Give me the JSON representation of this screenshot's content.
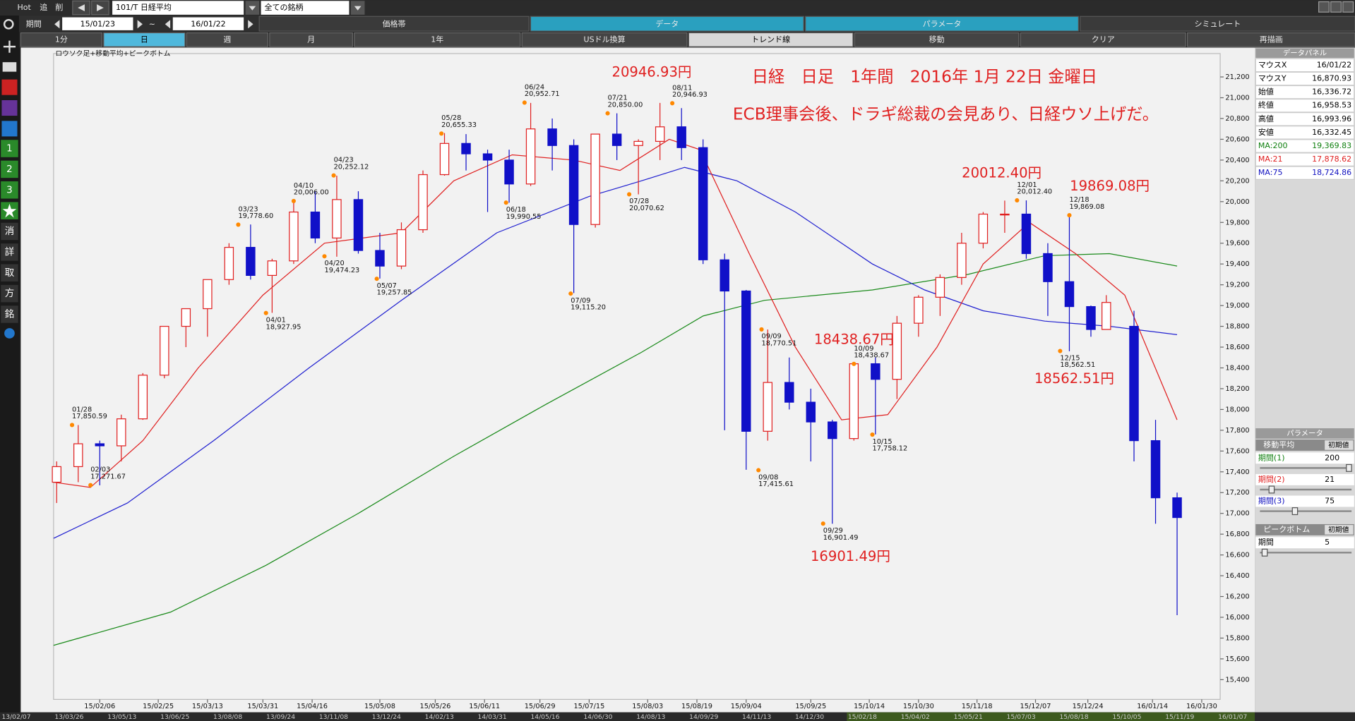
{
  "toolbar": {
    "hot": "Hot",
    "add": "追",
    "del": "削",
    "period_label": "期間",
    "from": "15/01/23",
    "tilde": "~",
    "to": "16/01/22",
    "symbol": "101/T 日経平均",
    "universe": "全ての銘柄"
  },
  "tabs": [
    "価格帯",
    "データ",
    "パラメータ",
    "シミュレート"
  ],
  "buttons": [
    "1分",
    "日",
    "週",
    "月",
    "1年",
    "USドル換算",
    "トレンド線",
    "移動",
    "クリア",
    "再描画"
  ],
  "side_tools": [
    "1",
    "2",
    "3",
    "消",
    "詳",
    "取",
    "方",
    "銘"
  ],
  "data_panel": {
    "title": "データパネル",
    "rows": [
      {
        "label": "マウスX",
        "value": "16/01/22",
        "color": "#000000"
      },
      {
        "label": "マウスY",
        "value": "16,870.93",
        "color": "#000000"
      },
      {
        "label": "始値",
        "value": "16,336.72",
        "color": "#000000"
      },
      {
        "label": "終値",
        "value": "16,958.53",
        "color": "#000000"
      },
      {
        "label": "高値",
        "value": "16,993.96",
        "color": "#000000"
      },
      {
        "label": "安値",
        "value": "16,332.45",
        "color": "#000000"
      },
      {
        "label": "MA:200",
        "value": "19,369.83",
        "color": "#108010"
      },
      {
        "label": "MA:21",
        "value": "17,878.62",
        "color": "#e02020"
      },
      {
        "label": "MA:75",
        "value": "18,724.86",
        "color": "#1010c0"
      }
    ]
  },
  "parameters": {
    "title": "パラメータ",
    "ma_header": "移動平均",
    "ma_default": "初期値",
    "ma": [
      {
        "label": "期間(1)",
        "value": 200,
        "color": "#108010"
      },
      {
        "label": "期間(2)",
        "value": 21,
        "color": "#e02020"
      },
      {
        "label": "期間(3)",
        "value": 75,
        "color": "#1010c0"
      }
    ],
    "pb_header": "ピークボトム",
    "pb_default": "初期値",
    "pb": [
      {
        "label": "期間",
        "value": 5,
        "color": "#000000"
      }
    ]
  },
  "overview_dates": [
    "13/02/07",
    "13/03/26",
    "13/05/13",
    "13/06/25",
    "13/08/08",
    "13/09/24",
    "13/11/08",
    "13/12/24",
    "14/02/13",
    "14/03/31",
    "14/05/16",
    "14/06/30",
    "14/08/13",
    "14/09/29",
    "14/11/13",
    "14/12/30",
    "15/02/18",
    "15/04/02",
    "15/05/21",
    "15/07/03",
    "15/08/18",
    "15/10/05",
    "15/11/19",
    "16/01/07"
  ],
  "chart_data": {
    "type": "candlestick",
    "title": "ロウソク足+移動平均+ピークボトム",
    "annotations": [
      "20946.93円",
      "日経　日足　1年間　2016年 1月 22日 金曜日",
      "ECB理事会後、ドラギ総裁の会見あり、日経ウソ上げだ。",
      "18438.67円",
      "16901.49円",
      "20012.40円",
      "19869.08円",
      "18562.51円"
    ],
    "up_color": "#e02020",
    "down_color": "#1010c8",
    "xlim": [
      "15/01/22",
      "16/02/05"
    ],
    "xticks": [
      "15/02/06",
      "15/02/25",
      "15/03/13",
      "15/03/31",
      "15/04/16",
      "15/05/08",
      "15/05/26",
      "15/06/11",
      "15/06/29",
      "15/07/15",
      "15/08/03",
      "15/08/19",
      "15/09/04",
      "15/09/25",
      "15/10/14",
      "15/10/30",
      "15/11/18",
      "15/12/07",
      "15/12/24",
      "16/01/14",
      "16/01/30"
    ],
    "ylim": [
      15210,
      21425
    ],
    "yticks": [
      {
        "value": 15400,
        "label": "15,400"
      },
      {
        "value": 15600,
        "label": "15,600"
      },
      {
        "value": 15800,
        "label": "15,800"
      },
      {
        "value": 16000,
        "label": "16,000"
      },
      {
        "value": 16200,
        "label": "16,200"
      },
      {
        "value": 16400,
        "label": "16,400"
      },
      {
        "value": 16600,
        "label": "16,600"
      },
      {
        "value": 16800,
        "label": "16,800"
      },
      {
        "value": 17000,
        "label": "17,000"
      },
      {
        "value": 17200,
        "label": "17,200"
      },
      {
        "value": 17400,
        "label": "17,400"
      },
      {
        "value": 17600,
        "label": "17,600"
      },
      {
        "value": 17800,
        "label": "17,800"
      },
      {
        "value": 18000,
        "label": "18,000"
      },
      {
        "value": 18200,
        "label": "18,200"
      },
      {
        "value": 18400,
        "label": "18,400"
      },
      {
        "value": 18600,
        "label": "18,600"
      },
      {
        "value": 18800,
        "label": "18,800"
      },
      {
        "value": 19000,
        "label": "19,000"
      },
      {
        "value": 19200,
        "label": "19,200"
      },
      {
        "value": 19400,
        "label": "19,400"
      },
      {
        "value": 19600,
        "label": "19,600"
      },
      {
        "value": 19800,
        "label": "19,800"
      },
      {
        "value": 20000,
        "label": "20,000"
      },
      {
        "value": 20200,
        "label": "20,200"
      },
      {
        "value": 20400,
        "label": "20,400"
      },
      {
        "value": 20600,
        "label": "20,600"
      },
      {
        "value": 20800,
        "label": "20,800"
      },
      {
        "value": 21000,
        "label": "21,000"
      },
      {
        "value": 21200,
        "label": "21,200"
      }
    ],
    "candles": {
      "dates": [
        "15/01/23",
        "15/01/30",
        "15/02/06",
        "15/02/13",
        "15/02/20",
        "15/02/27",
        "15/03/06",
        "15/03/13",
        "15/03/20",
        "15/03/27",
        "15/04/03",
        "15/04/10",
        "15/04/17",
        "15/04/24",
        "15/05/01",
        "15/05/08",
        "15/05/15",
        "15/05/22",
        "15/05/29",
        "15/06/05",
        "15/06/12",
        "15/06/19",
        "15/06/26",
        "15/07/03",
        "15/07/10",
        "15/07/17",
        "15/07/24",
        "15/07/31",
        "15/08/07",
        "15/08/14",
        "15/08/21",
        "15/08/28",
        "15/09/04",
        "15/09/11",
        "15/09/18",
        "15/09/25",
        "15/10/02",
        "15/10/09",
        "15/10/16",
        "15/10/23",
        "15/10/30",
        "15/11/06",
        "15/11/13",
        "15/11/20",
        "15/11/27",
        "15/12/04",
        "15/12/11",
        "15/12/18",
        "15/12/25",
        "15/12/30",
        "16/01/08",
        "16/01/15",
        "16/01/22"
      ],
      "open": [
        17300,
        17450,
        17670,
        17650,
        17910,
        18330,
        18800,
        18970,
        19250,
        19560,
        19290,
        19430,
        19900,
        19650,
        20020,
        19530,
        19380,
        19730,
        20260,
        20560,
        20460,
        20400,
        20170,
        20700,
        20540,
        19780,
        20650,
        20540,
        20580,
        20720,
        20520,
        19440,
        19140,
        17790,
        18260,
        18070,
        17880,
        17720,
        18440,
        18290,
        18830,
        19080,
        19270,
        19600,
        19880,
        19880,
        19500,
        19230,
        18990,
        18770,
        18800,
        17700,
        17150
      ],
      "high": [
        17500,
        17850,
        17700,
        17950,
        18350,
        18800,
        18970,
        19250,
        19600,
        19780,
        19450,
        20010,
        20100,
        20250,
        20100,
        19700,
        19800,
        20300,
        20660,
        20650,
        20500,
        20500,
        20950,
        20800,
        20600,
        20650,
        20850,
        20600,
        20950,
        20900,
        20600,
        19500,
        19150,
        18770,
        18500,
        18200,
        17900,
        18440,
        18500,
        18900,
        19100,
        19300,
        19700,
        19900,
        20010,
        20012,
        19600,
        19870,
        19000,
        19100,
        18950,
        17900,
        17200
      ],
      "low": [
        17100,
        17300,
        17270,
        17500,
        17900,
        18300,
        18600,
        18700,
        19200,
        19250,
        18930,
        19400,
        19600,
        19470,
        19500,
        19260,
        19350,
        19700,
        20250,
        20300,
        19900,
        19990,
        20150,
        20300,
        19120,
        19750,
        20400,
        20070,
        20400,
        20400,
        19400,
        17800,
        17420,
        17700,
        18000,
        17500,
        16900,
        17700,
        17760,
        18100,
        18700,
        18900,
        19200,
        19550,
        19700,
        19450,
        18900,
        18560,
        18700,
        18800,
        17500,
        16900,
        16020
      ],
      "close": [
        17450,
        17670,
        17650,
        17910,
        18330,
        18800,
        18970,
        19250,
        19560,
        19290,
        19430,
        19900,
        19650,
        20020,
        19530,
        19380,
        19730,
        20260,
        20560,
        20460,
        20400,
        20170,
        20700,
        20540,
        19780,
        20650,
        20540,
        20580,
        20720,
        20520,
        19440,
        19140,
        17790,
        18260,
        18070,
        17880,
        17720,
        18440,
        18290,
        18830,
        19080,
        19270,
        19600,
        19880,
        19880,
        19500,
        19230,
        18990,
        18770,
        19030,
        17700,
        17150,
        16960
      ]
    },
    "series": [
      {
        "color": "#1a8a1a",
        "dates": [
          "15/01/22",
          "15/03/01",
          "15/04/01",
          "15/05/01",
          "15/06/01",
          "15/07/01",
          "15/08/01",
          "15/08/21",
          "15/09/10",
          "15/10/15",
          "15/11/15",
          "15/12/10",
          "15/12/31",
          "16/01/22"
        ],
        "values": [
          15730,
          16050,
          16500,
          17000,
          17550,
          18050,
          18550,
          18900,
          19050,
          19150,
          19300,
          19480,
          19500,
          19380
        ]
      },
      {
        "color": "#2020d0",
        "dates": [
          "15/01/22",
          "15/02/15",
          "15/03/15",
          "15/04/15",
          "15/05/15",
          "15/06/15",
          "15/07/15",
          "15/08/01",
          "15/08/15",
          "15/09/01",
          "15/09/20",
          "15/10/15",
          "15/11/01",
          "15/11/20",
          "15/12/10",
          "15/12/31",
          "16/01/22"
        ],
        "values": [
          16760,
          17100,
          17700,
          18400,
          19050,
          19700,
          20050,
          20200,
          20330,
          20200,
          19900,
          19400,
          19150,
          18950,
          18850,
          18800,
          18720
        ]
      },
      {
        "color": "#e02020",
        "dates": [
          "15/01/22",
          "15/02/03",
          "15/02/20",
          "15/03/10",
          "15/03/31",
          "15/04/20",
          "15/05/15",
          "15/06/01",
          "15/06/20",
          "15/07/10",
          "15/07/25",
          "15/08/10",
          "15/08/20",
          "15/09/05",
          "15/09/20",
          "15/10/05",
          "15/10/20",
          "15/11/05",
          "15/11/20",
          "15/12/05",
          "15/12/20",
          "16/01/05",
          "16/01/22"
        ],
        "values": [
          17300,
          17250,
          17700,
          18400,
          19100,
          19600,
          19700,
          20200,
          20450,
          20400,
          20300,
          20600,
          20500,
          19500,
          18600,
          17900,
          17950,
          18600,
          19400,
          19800,
          19500,
          19100,
          17900
        ]
      }
    ],
    "peaks": {
      "dates": [
        "01/28",
        "02/03",
        "03/23",
        "04/01",
        "04/10",
        "04/20",
        "04/23",
        "05/07",
        "05/28",
        "06/18",
        "06/24",
        "07/09",
        "07/21",
        "07/28",
        "08/11",
        "09/08",
        "09/09",
        "09/29",
        "10/09",
        "10/15",
        "12/01",
        "12/15",
        "12/18"
      ],
      "values": [
        17850.59,
        17271.67,
        19778.6,
        18927.95,
        20006.0,
        19474.23,
        20252.12,
        19257.85,
        20655.33,
        19990.55,
        20952.71,
        19115.2,
        20850.0,
        20070.62,
        20946.93,
        17415.61,
        18770.51,
        16901.49,
        18438.67,
        17758.12,
        20012.4,
        18562.51,
        19869.08
      ],
      "value_labels": [
        "17,850.59",
        "17,271.67",
        "19,778.60",
        "18,927.95",
        "20,006.00",
        "19,474.23",
        "20,252.12",
        "19,257.85",
        "20,655.33",
        "19,990.55",
        "20,952.71",
        "19,115.20",
        "20,850.00",
        "20,070.62",
        "20,946.93",
        "17,415.61",
        "18,770.51",
        "16,901.49",
        "18,438.67",
        "17,758.12",
        "20,012.40",
        "18,562.51",
        "19,869.08"
      ]
    }
  }
}
